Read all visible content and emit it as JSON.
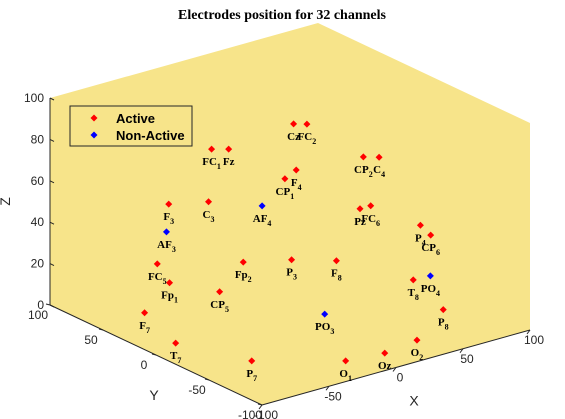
{
  "chart_data": {
    "type": "scatter3d",
    "title": "Electrodes position for 32 channels",
    "xlabel": "X",
    "ylabel": "Y",
    "zlabel": "Z",
    "xlim": [
      -100,
      100
    ],
    "ylim": [
      -100,
      100
    ],
    "zlim": [
      0,
      100
    ],
    "xticks": [
      -100,
      -50,
      0,
      50,
      100
    ],
    "yticks": [
      -100,
      -50,
      0,
      50,
      100
    ],
    "zticks": [
      0,
      20,
      40,
      60,
      80,
      100
    ],
    "legend": "northwest",
    "grid": false,
    "series": [
      {
        "name": "Active",
        "color": "#ff0000",
        "labels": [
          "Fp1",
          "Fp2",
          "Fz",
          "F3",
          "F4",
          "F7",
          "F8",
          "FC1",
          "FC2",
          "Cz",
          "FC5",
          "FC6",
          "C3",
          "C4",
          "CP2",
          "CP1",
          "CP5",
          "CP6",
          "P3",
          "P4",
          "P7",
          "P8",
          "Pz",
          "O1",
          "Oz",
          "O2",
          "T7",
          "T8"
        ],
        "x": [
          -63,
          -8,
          -26,
          -47,
          26,
          -84,
          37,
          -34,
          15,
          9,
          -50,
          46,
          -26,
          57,
          50,
          12,
          -28,
          86,
          17,
          91,
          -61,
          59,
          38,
          -17,
          9,
          37,
          -79,
          54
        ],
        "y": [
          34,
          34,
          25,
          55,
          27,
          31,
          3,
          31,
          3,
          8,
          62,
          -18,
          44,
          -12,
          -6,
          20,
          31,
          -24,
          20,
          -8,
          -41,
          -70,
          -18,
          -74,
          -78,
          -73,
          8,
          -48
        ],
        "z": [
          20,
          20,
          80,
          50,
          60,
          10,
          20,
          80,
          90,
          90,
          20,
          50,
          50,
          70,
          70,
          60,
          10,
          30,
          20,
          30,
          0,
          10,
          50,
          0,
          0,
          0,
          0,
          20
        ]
      },
      {
        "name": "Non-Active",
        "color": "#0000ff",
        "labels": [
          "AF3",
          "AF4",
          "PO3",
          "PO4"
        ],
        "x": [
          -55,
          -5,
          -1,
          66
        ],
        "y": [
          47,
          20,
          -34,
          -49
        ],
        "z": [
          40,
          50,
          10,
          20
        ]
      }
    ]
  }
}
